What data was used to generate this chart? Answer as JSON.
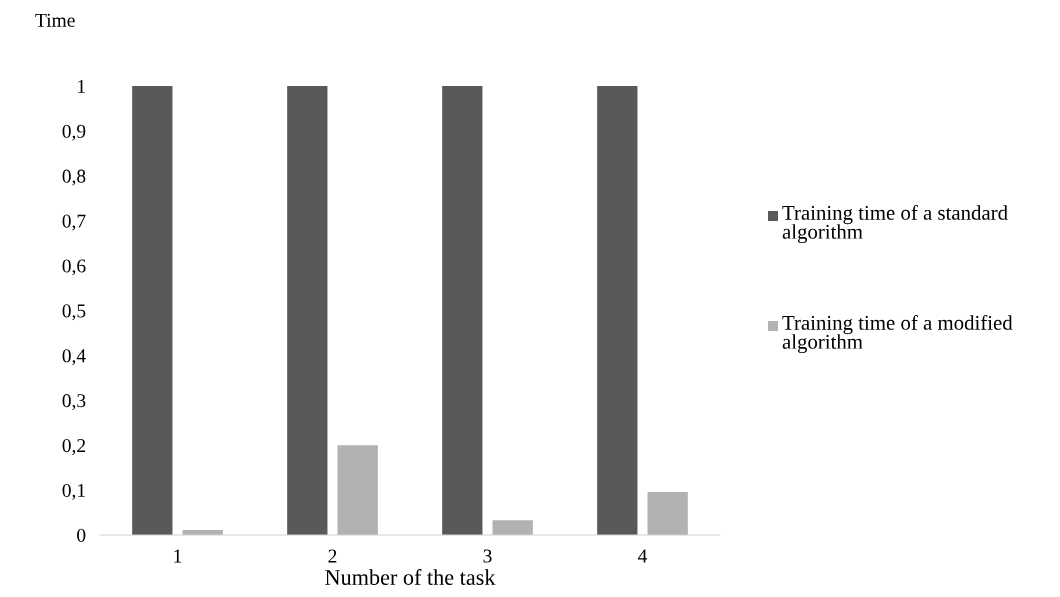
{
  "chart_data": {
    "type": "bar",
    "ylabel": "Time",
    "xlabel": "Number of the task",
    "categories": [
      "1",
      "2",
      "3",
      "4"
    ],
    "series": [
      {
        "name": "Training time of a standard algorithm",
        "color": "#595959",
        "values": [
          1,
          1,
          1,
          1
        ]
      },
      {
        "name": "Training time of a modified algorithm",
        "color": "#b2b2b2",
        "values": [
          0.011,
          0.2,
          0.033,
          0.096
        ]
      }
    ],
    "ylim": [
      0,
      1
    ],
    "yticks": [
      0,
      {
        "value": 0.1,
        "label": "0,1"
      },
      {
        "value": 0.2,
        "label": "0,2"
      },
      {
        "value": 0.3,
        "label": "0,3"
      },
      {
        "value": 0.4,
        "label": "0,4"
      },
      {
        "value": 0.5,
        "label": "0,5"
      },
      {
        "value": 0.6,
        "label": "0,6"
      },
      {
        "value": 0.7,
        "label": "0,7"
      },
      {
        "value": 0.8,
        "label": "0,8"
      },
      {
        "value": 0.9,
        "label": "0,9"
      },
      1
    ],
    "grid": false,
    "legend": "right"
  }
}
